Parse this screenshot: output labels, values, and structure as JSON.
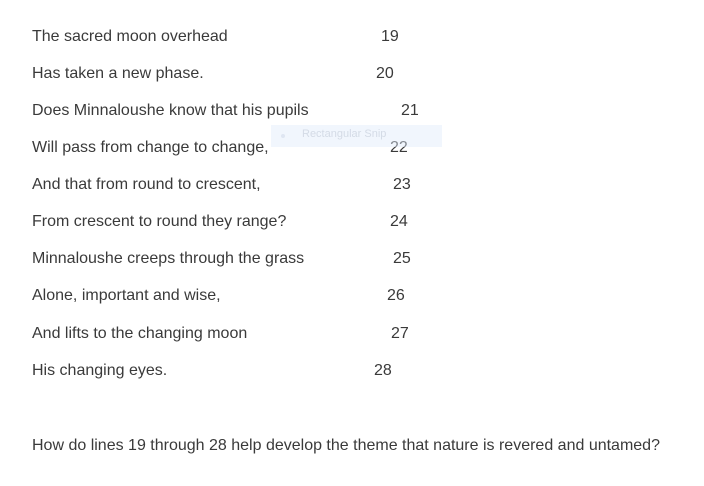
{
  "poem": [
    {
      "text": "The sacred moon overhead",
      "line": "19"
    },
    {
      "text": "Has taken a new phase.",
      "line": "20"
    },
    {
      "text": "Does Minnaloushe know that his pupils",
      "line": "21"
    },
    {
      "text": "Will pass from change to change,",
      "line": "22"
    },
    {
      "text": "And that from round to crescent,",
      "line": "23"
    },
    {
      "text": "From crescent to round they range?",
      "line": "24"
    },
    {
      "text": "Minnaloushe creeps through the grass",
      "line": "25"
    },
    {
      "text": "Alone, important and wise,",
      "line": "26"
    },
    {
      "text": "And lifts to the changing moon",
      "line": "27"
    },
    {
      "text": "His changing eyes.",
      "line": "28"
    }
  ],
  "snip_overlay": {
    "label": "Rectangular Snip"
  },
  "question": "How do lines 19 through 28 help develop the theme that nature is revered and untamed?"
}
